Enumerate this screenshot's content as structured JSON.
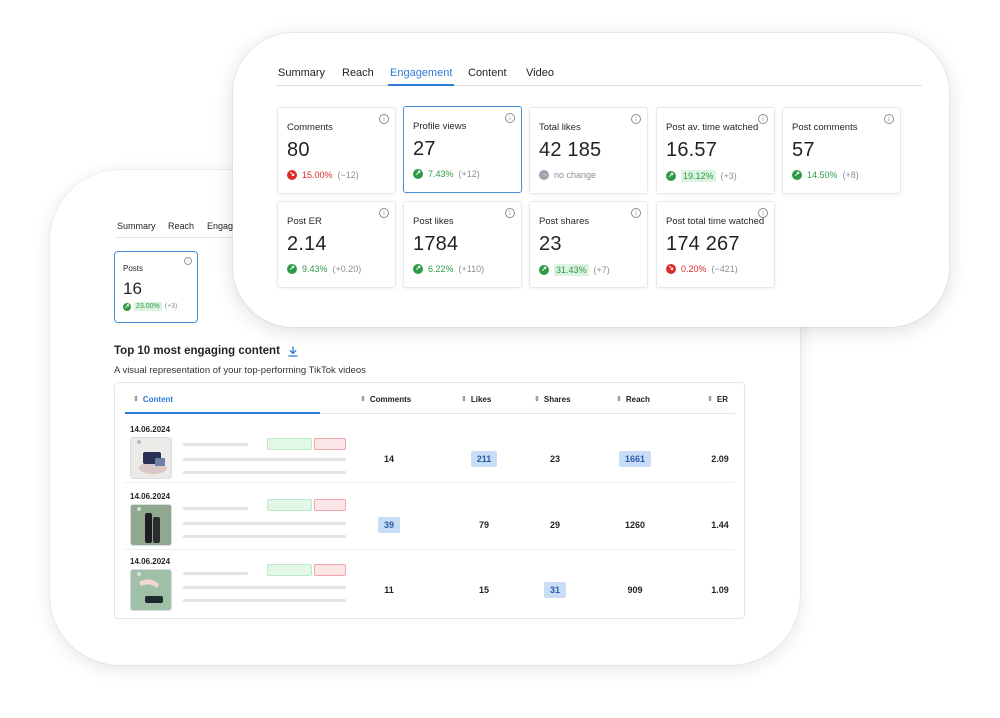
{
  "back": {
    "tabs": [
      "Summary",
      "Reach",
      "Engage"
    ],
    "posts_card": {
      "label": "Posts",
      "value": "16",
      "delta_pct": "23.00%",
      "delta_abs": "(+3)",
      "trend": "up"
    },
    "section_title": "Top 10 most engaging content",
    "section_subtitle": "A visual representation of your top-performing TikTok videos",
    "download_icon": "download-icon",
    "table": {
      "columns": [
        "Content",
        "Comments",
        "Likes",
        "Shares",
        "Reach",
        "ER"
      ],
      "rows": [
        {
          "date": "14.06.2024",
          "comments": "14",
          "likes": "211",
          "shares": "23",
          "reach": "1661",
          "er": "2.09"
        },
        {
          "date": "14.06.2024",
          "comments": "39",
          "likes": "79",
          "shares": "29",
          "reach": "1260",
          "er": "1.44"
        },
        {
          "date": "14.06.2024",
          "comments": "11",
          "likes": "15",
          "shares": "31",
          "reach": "909",
          "er": "1.09"
        }
      ]
    }
  },
  "front": {
    "tabs": [
      "Summary",
      "Reach",
      "Engagement",
      "Content",
      "Video"
    ],
    "active_tab": "Engagement",
    "metrics": [
      {
        "label": "Comments",
        "value": "80",
        "pct": "15.00%",
        "abs": "(−12)",
        "trend": "down"
      },
      {
        "label": "Profile views",
        "value": "27",
        "pct": "7.43%",
        "abs": "(+12)",
        "trend": "up"
      },
      {
        "label": "Total likes",
        "value": "42 185",
        "pct": "no change",
        "abs": "",
        "trend": "neutral"
      },
      {
        "label": "Post av. time watched",
        "value": "16.57",
        "pct": "19.12%",
        "abs": "(+3)",
        "trend": "up"
      },
      {
        "label": "Post comments",
        "value": "57",
        "pct": "14.50%",
        "abs": "(+8)",
        "trend": "up"
      },
      {
        "label": "Post ER",
        "value": "2.14",
        "pct": "9.43%",
        "abs": "(+0.20)",
        "trend": "up"
      },
      {
        "label": "Post likes",
        "value": "1784",
        "pct": "6.22%",
        "abs": "(+110)",
        "trend": "up"
      },
      {
        "label": "Post shares",
        "value": "23",
        "pct": "31.43%",
        "abs": "(+7)",
        "trend": "up"
      },
      {
        "label": "Post total time watched",
        "value": "174 267",
        "pct": "0.20%",
        "abs": "(−421)",
        "trend": "down"
      }
    ]
  },
  "colors": {
    "accent": "#2f7bd6",
    "positive": "#2f9a45",
    "negative": "#d92c2c",
    "highlight": "#c9dcf6"
  }
}
